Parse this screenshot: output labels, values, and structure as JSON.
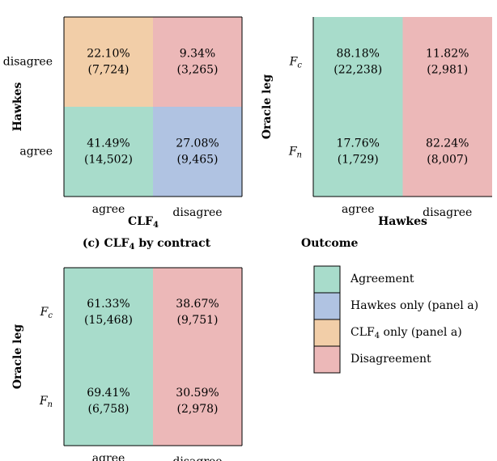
{
  "colors": {
    "agreement": "#a8dccb",
    "hawkes_only": "#b0c3e2",
    "clf4_only": "#f2cea8",
    "disagreement": "#ecb8b8"
  },
  "chart_data": [
    {
      "type": "heatmap",
      "title": "",
      "xlabel": "CLF",
      "xlabel_sub": "4",
      "ylabel": "Hawkes",
      "x_categories": [
        "agree",
        "disagree"
      ],
      "y_categories": [
        "disagree",
        "agree"
      ],
      "cells": [
        {
          "row": 0,
          "col": 0,
          "percent": "22.10%",
          "count": "(7,724)",
          "value": 22.1,
          "color_key": "clf4_only"
        },
        {
          "row": 0,
          "col": 1,
          "percent": "9.34%",
          "count": "(3,265)",
          "value": 9.34,
          "color_key": "disagreement"
        },
        {
          "row": 1,
          "col": 0,
          "percent": "41.49%",
          "count": "(14,502)",
          "value": 41.49,
          "color_key": "agreement"
        },
        {
          "row": 1,
          "col": 1,
          "percent": "27.08%",
          "count": "(9,465)",
          "value": 27.08,
          "color_key": "hawkes_only"
        }
      ]
    },
    {
      "type": "heatmap",
      "title": "",
      "xlabel": "Hawkes",
      "ylabel": "Oracle leg",
      "x_categories": [
        "agree",
        "disagree"
      ],
      "y_categories": [
        {
          "base": "F",
          "sub": "c"
        },
        {
          "base": "F",
          "sub": "n"
        }
      ],
      "cells": [
        {
          "row": 0,
          "col": 0,
          "percent": "88.18%",
          "count": "(22,238)",
          "value": 88.18,
          "color_key": "agreement"
        },
        {
          "row": 0,
          "col": 1,
          "percent": "11.82%",
          "count": "(2,981)",
          "value": 11.82,
          "color_key": "disagreement"
        },
        {
          "row": 1,
          "col": 0,
          "percent": "17.76%",
          "count": "(1,729)",
          "value": 17.76,
          "color_key": "agreement"
        },
        {
          "row": 1,
          "col": 1,
          "percent": "82.24%",
          "count": "(8,007)",
          "value": 82.24,
          "color_key": "disagreement"
        }
      ]
    },
    {
      "type": "heatmap",
      "title": "(c) CLF",
      "title_sub": "4",
      "title_rest": " by contract",
      "xlabel": "",
      "ylabel": "Oracle leg",
      "x_categories": [
        "agree",
        "disagree"
      ],
      "y_categories": [
        {
          "base": "F",
          "sub": "c"
        },
        {
          "base": "F",
          "sub": "n"
        }
      ],
      "cells": [
        {
          "row": 0,
          "col": 0,
          "percent": "61.33%",
          "count": "(15,468)",
          "value": 61.33,
          "color_key": "agreement"
        },
        {
          "row": 0,
          "col": 1,
          "percent": "38.67%",
          "count": "(9,751)",
          "value": 38.67,
          "color_key": "disagreement"
        },
        {
          "row": 1,
          "col": 0,
          "percent": "69.41%",
          "count": "(6,758)",
          "value": 69.41,
          "color_key": "agreement"
        },
        {
          "row": 1,
          "col": 1,
          "percent": "30.59%",
          "count": "(2,978)",
          "value": 30.59,
          "color_key": "disagreement"
        }
      ]
    }
  ],
  "legend": {
    "title": "Outcome",
    "entries": [
      {
        "label": "Agreement",
        "color_key": "agreement",
        "label_parts": null
      },
      {
        "label": "Hawkes only (panel a)",
        "color_key": "hawkes_only",
        "label_parts": null
      },
      {
        "label": "CLF4 only (panel a)",
        "color_key": "clf4_only",
        "label_parts": {
          "pre": "CLF",
          "sub": "4",
          "post": " only (panel a)"
        }
      },
      {
        "label": "Disagreement",
        "color_key": "disagreement",
        "label_parts": null
      }
    ]
  }
}
